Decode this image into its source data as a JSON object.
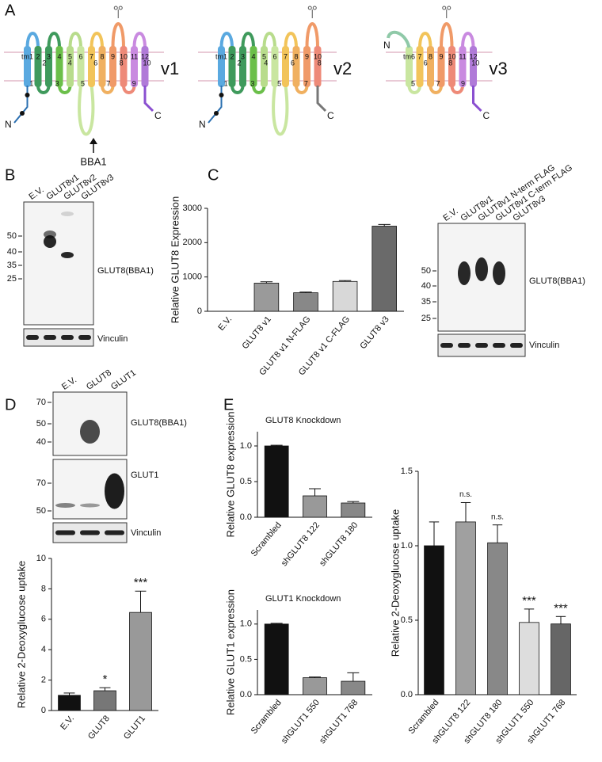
{
  "panel_labels": [
    "A",
    "B",
    "C",
    "D",
    "E"
  ],
  "topology": {
    "epitope": "BBA1",
    "variants": [
      {
        "name": "v1",
        "n_term": "N",
        "c_term": "C",
        "helices": [
          "tm1",
          "2",
          "3",
          "4",
          "5",
          "6",
          "7",
          "8",
          "9",
          "10",
          "11",
          "12"
        ],
        "helix_colors": [
          "#5aa9e0",
          "#3f9a5c",
          "#3f9a5c",
          "#6bbf4a",
          "#b8dc8c",
          "#c9e6a0",
          "#f2c45a",
          "#f0b060",
          "#f09a68",
          "#ee8a78",
          "#c98ae0",
          "#b07ad8"
        ],
        "exons": [
          "1",
          "2",
          "3",
          "4",
          "5",
          "6",
          "7",
          "8",
          "9",
          "10"
        ]
      },
      {
        "name": "v2",
        "n_term": "N",
        "c_term": "C",
        "helices": [
          "tm1",
          "2",
          "3",
          "4",
          "5",
          "6",
          "7",
          "8",
          "9",
          "10"
        ],
        "helix_colors": [
          "#5aa9e0",
          "#3f9a5c",
          "#3f9a5c",
          "#6bbf4a",
          "#b8dc8c",
          "#c9e6a0",
          "#f2c45a",
          "#f0b060",
          "#f09a68",
          "#ee8a78"
        ],
        "exons": [
          "1",
          "2",
          "3",
          "4",
          "5",
          "6",
          "7",
          "8"
        ]
      },
      {
        "name": "v3",
        "n_term": "N",
        "c_term": "C",
        "helices": [
          "tm6",
          "7",
          "8",
          "9",
          "10",
          "11",
          "12"
        ],
        "helix_colors": [
          "#c9e6a0",
          "#f2c45a",
          "#f0b060",
          "#f09a68",
          "#ee8a78",
          "#c98ae0",
          "#b07ad8"
        ],
        "exons": [
          "5",
          "6",
          "7",
          "8",
          "9",
          "10"
        ]
      }
    ]
  },
  "blots": [
    {
      "lanes": [
        "E.V.",
        "GLUT8v1",
        "GLUT8v2",
        "GLUT8v3"
      ],
      "membranes": [
        {
          "label": "GLUT8(BBA1)",
          "markers": [
            "50",
            "40",
            "35",
            "25"
          ]
        },
        {
          "label": "Vinculin"
        }
      ]
    },
    {
      "lanes": [
        "E.V.",
        "GLUT8v1",
        "GLUT8v1 N-term FLAG",
        "GLUT8v1 C-term FLAG",
        "GLUT8v3"
      ],
      "membranes": [
        {
          "label": "GLUT8(BBA1)",
          "markers": [
            "50",
            "40",
            "35",
            "25"
          ]
        },
        {
          "label": "Vinculin"
        }
      ]
    },
    {
      "lanes": [
        "E.V.",
        "GLUT8",
        "GLUT1"
      ],
      "membranes": [
        {
          "label": "GLUT8(BBA1)",
          "markers": [
            "70",
            "50",
            "40"
          ]
        },
        {
          "label": "GLUT1",
          "markers": [
            "70",
            "50"
          ]
        },
        {
          "label": "Vinculin"
        }
      ]
    }
  ],
  "chart_data": [
    {
      "type": "bar",
      "y_label": "Relative GLUT8 Expression",
      "categories": [
        "E.V.",
        "GLUT8 v1",
        "GLUT8 v1 N-FLAG",
        "GLUT8 v1 C-FLAG",
        "GLUT8 v3"
      ],
      "values": [
        0,
        820,
        540,
        870,
        2480
      ],
      "errors": [
        null,
        40,
        20,
        25,
        50
      ],
      "colors": [
        "#111111",
        "#9a9a9a",
        "#888888",
        "#d8d8d8",
        "#6a6a6a"
      ],
      "ylim": [
        0,
        3000
      ],
      "yticks": [
        0,
        1000,
        2000,
        3000
      ]
    },
    {
      "type": "bar",
      "y_label": "Relative 2-Deoxyglucose uptake",
      "categories": [
        "E.V.",
        "GLUT8",
        "GLUT1"
      ],
      "values": [
        1.0,
        1.3,
        6.45
      ],
      "errors": [
        0.15,
        0.2,
        1.4
      ],
      "annotations": [
        null,
        "*",
        "***"
      ],
      "colors": [
        "#111111",
        "#777777",
        "#999999"
      ],
      "ylim": [
        0,
        10
      ],
      "yticks": [
        0,
        2,
        4,
        6,
        8,
        10
      ]
    },
    {
      "type": "bar",
      "title": "GLUT8 Knockdown",
      "y_label": "Relative GLUT8 expression",
      "categories": [
        "Scrambled",
        "shGLUT8 122",
        "shGLUT8 180"
      ],
      "values": [
        1.0,
        0.3,
        0.2
      ],
      "errors": [
        0.01,
        0.1,
        0.02
      ],
      "colors": [
        "#111111",
        "#999999",
        "#888888"
      ],
      "ylim": [
        0,
        1.2
      ],
      "yticks": [
        {
          "value": 0,
          "label": "0.0"
        },
        0.5,
        {
          "value": 1,
          "label": "1.0"
        }
      ]
    },
    {
      "type": "bar",
      "title": "GLUT1 Knockdown",
      "y_label": "Relative GLUT1 expression",
      "categories": [
        "Scrambled",
        "shGLUT1 550",
        "shGLUT1 768"
      ],
      "values": [
        1.0,
        0.24,
        0.19
      ],
      "errors": [
        0.01,
        0.01,
        0.12
      ],
      "colors": [
        "#111111",
        "#999999",
        "#888888"
      ],
      "ylim": [
        0,
        1.2
      ],
      "yticks": [
        {
          "value": 0,
          "label": "0.0"
        },
        0.5,
        {
          "value": 1,
          "label": "1.0"
        }
      ]
    },
    {
      "type": "bar",
      "y_label": "Relative 2-Deoxyglucose uptake",
      "categories": [
        "Scrambled",
        "shGLUT8 122",
        "shGLUT8 180",
        "shGLUT1 550",
        "shGLUT1 768"
      ],
      "values": [
        1.0,
        1.16,
        1.02,
        0.485,
        0.475
      ],
      "errors": [
        0.16,
        0.13,
        0.12,
        0.09,
        0.05
      ],
      "annotations": [
        null,
        "n.s.",
        "n.s.",
        "***",
        "***"
      ],
      "colors": [
        "#111111",
        "#a0a0a0",
        "#888888",
        "#dddddd",
        "#666666"
      ],
      "ylim": [
        0,
        1.5
      ],
      "yticks": [
        {
          "value": 0,
          "label": "0.0"
        },
        0.5,
        {
          "value": 1,
          "label": "1.0"
        },
        1.5
      ]
    }
  ]
}
